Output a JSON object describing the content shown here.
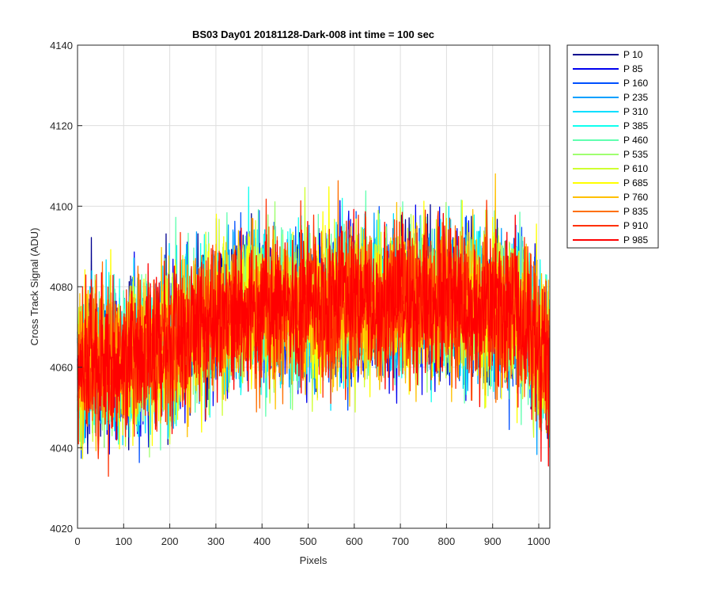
{
  "chart_data": {
    "type": "line",
    "title": "BS03 Day01 20181128-Dark-008 int time = 100 sec",
    "xlabel": "Pixels",
    "ylabel": "Cross Track Signal (ADU)",
    "xlim": [
      0,
      1024
    ],
    "ylim": [
      4020,
      4140
    ],
    "xticks": [
      "0",
      "100",
      "200",
      "300",
      "400",
      "500",
      "600",
      "700",
      "800",
      "900",
      "1000"
    ],
    "yticks": [
      "4020",
      "4040",
      "4060",
      "4080",
      "4100",
      "4120",
      "4140"
    ],
    "grid": true,
    "legend_position": "outside-right-top",
    "series": [
      {
        "name": "P 10",
        "color": "#00008f"
      },
      {
        "name": "P 85",
        "color": "#0000ef"
      },
      {
        "name": "P 160",
        "color": "#0050ff"
      },
      {
        "name": "P 235",
        "color": "#00a0ff"
      },
      {
        "name": "P 310",
        "color": "#00dfff"
      },
      {
        "name": "P 385",
        "color": "#10ffef"
      },
      {
        "name": "P 460",
        "color": "#60ffaf"
      },
      {
        "name": "P 535",
        "color": "#9fff70"
      },
      {
        "name": "P 610",
        "color": "#cfff30"
      },
      {
        "name": "P 685",
        "color": "#ffff00"
      },
      {
        "name": "P 760",
        "color": "#ffc000"
      },
      {
        "name": "P 835",
        "color": "#ff7000"
      },
      {
        "name": "P 910",
        "color": "#ff3000"
      },
      {
        "name": "P 985",
        "color": "#ff0000"
      }
    ],
    "series_profile": {
      "pixel_count": 1024,
      "baseline_points": [
        [
          0,
          4060
        ],
        [
          100,
          4062
        ],
        [
          200,
          4066
        ],
        [
          300,
          4072
        ],
        [
          400,
          4075
        ],
        [
          500,
          4075
        ],
        [
          600,
          4076
        ],
        [
          700,
          4076
        ],
        [
          800,
          4076
        ],
        [
          900,
          4075
        ],
        [
          960,
          4073
        ],
        [
          1000,
          4066
        ],
        [
          1024,
          4060
        ]
      ],
      "noise_std_adu": 9
    }
  }
}
